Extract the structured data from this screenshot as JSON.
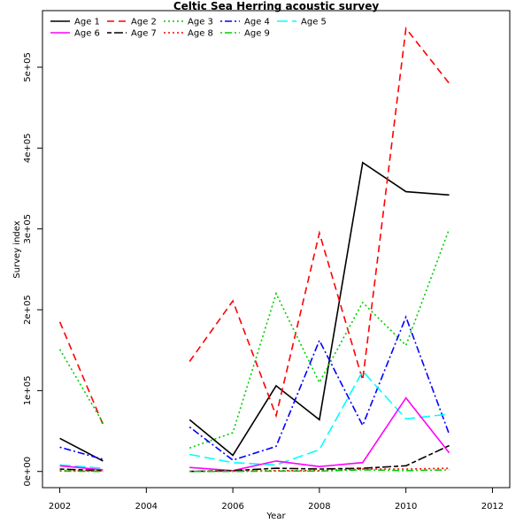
{
  "chart_data": {
    "type": "line",
    "title": "Celtic Sea Herring acoustic survey",
    "xlabel": "Year",
    "ylabel": "Survey index",
    "xlim": [
      2001.6,
      2012.4
    ],
    "ylim": [
      -20000,
      570000
    ],
    "xticks": [
      2002,
      2004,
      2006,
      2008,
      2010,
      2012
    ],
    "xtick_labels": [
      "2002",
      "2004",
      "2006",
      "2008",
      "2010",
      "2012"
    ],
    "yticks": [
      0,
      100000,
      200000,
      300000,
      400000,
      500000
    ],
    "ytick_labels": [
      "0e+00",
      "1e+05",
      "2e+05",
      "3e+05",
      "4e+05",
      "5e+05"
    ],
    "grid": false,
    "legend_position": "top-left",
    "x": [
      2002,
      2003,
      2004,
      2005,
      2006,
      2007,
      2008,
      2009,
      2010,
      2011
    ],
    "series": [
      {
        "name": "Age 1",
        "color": "#000000",
        "dash": "solid",
        "values": [
          41000,
          13000,
          null,
          64000,
          20000,
          106000,
          64000,
          382000,
          346000,
          342000
        ]
      },
      {
        "name": "Age 2",
        "color": "#ff0000",
        "dash": "dashed",
        "values": [
          185000,
          58000,
          null,
          136000,
          211000,
          69000,
          295000,
          113000,
          548000,
          480000
        ]
      },
      {
        "name": "Age 3",
        "color": "#00cd00",
        "dash": "dotted",
        "values": [
          151000,
          60000,
          null,
          29000,
          48000,
          220000,
          110000,
          209000,
          156000,
          300000
        ]
      },
      {
        "name": "Age 4",
        "color": "#0000ff",
        "dash": "dotdash",
        "values": [
          30000,
          15000,
          null,
          55000,
          14000,
          31000,
          162000,
          57000,
          191000,
          46000
        ]
      },
      {
        "name": "Age 5",
        "color": "#00ffff",
        "dash": "longdash",
        "values": [
          8000,
          4000,
          null,
          21000,
          11000,
          8000,
          27000,
          124000,
          65000,
          71000
        ]
      },
      {
        "name": "Age 6",
        "color": "#ff00ff",
        "dash": "solid",
        "values": [
          7000,
          2000,
          null,
          5000,
          1000,
          13000,
          6000,
          11000,
          91000,
          23000
        ]
      },
      {
        "name": "Age 7",
        "color": "#000000",
        "dash": "twodash",
        "values": [
          3000,
          1000,
          null,
          0,
          1000,
          4000,
          3000,
          4000,
          7000,
          32000
        ]
      },
      {
        "name": "Age 8",
        "color": "#ff0000",
        "dash": "dotted",
        "values": [
          1000,
          500,
          null,
          0,
          500,
          1000,
          1000,
          3000,
          3000,
          4000
        ]
      },
      {
        "name": "Age 9",
        "color": "#00cd00",
        "dash": "dotdash",
        "values": [
          500,
          0,
          null,
          0,
          0,
          500,
          500,
          2000,
          1000,
          2000
        ]
      }
    ]
  }
}
